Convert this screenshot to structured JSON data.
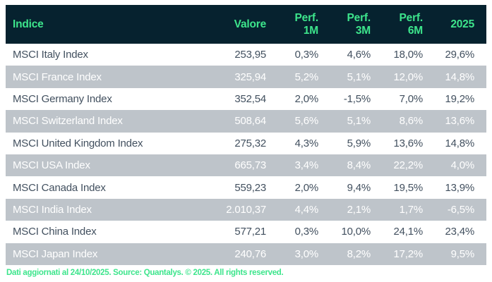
{
  "colors": {
    "header_bg": "#06222f",
    "accent_green": "#3de58c",
    "alt_row_bg": "#bec4ca",
    "row_text": "#42505f"
  },
  "chart_data": {
    "type": "table",
    "columns": [
      "Indice",
      "Valore",
      "Perf. 1M",
      "Perf. 3M",
      "Perf. 6M",
      "2025"
    ],
    "rows": [
      [
        "MSCI Italy Index",
        "253,95",
        "0,3%",
        "4,6%",
        "18,0%",
        "29,6%"
      ],
      [
        "MSCI France Index",
        "325,94",
        "5,2%",
        "5,1%",
        "12,0%",
        "14,8%"
      ],
      [
        "MSCI Germany Index",
        "352,54",
        "2,0%",
        "-1,5%",
        "7,0%",
        "19,2%"
      ],
      [
        "MSCI Switzerland Index",
        "508,64",
        "5,6%",
        "5,1%",
        "8,6%",
        "13,6%"
      ],
      [
        "MSCI United Kingdom Index",
        "275,32",
        "4,3%",
        "5,9%",
        "13,6%",
        "14,8%"
      ],
      [
        "MSCI USA Index",
        "665,73",
        "3,4%",
        "8,4%",
        "22,2%",
        "4,0%"
      ],
      [
        "MSCI Canada Index",
        "559,23",
        "2,0%",
        "9,4%",
        "19,5%",
        "13,9%"
      ],
      [
        "MSCI India Index",
        "2.010,37",
        "4,4%",
        "2,1%",
        "1,7%",
        "-6,5%"
      ],
      [
        "MSCI China Index",
        "577,21",
        "0,3%",
        "10,0%",
        "24,1%",
        "23,4%"
      ],
      [
        "MSCI Japan Index",
        "240,76",
        "3,0%",
        "8,2%",
        "17,2%",
        "9,5%"
      ]
    ],
    "layout": {
      "alternating_rows": true,
      "header_text_color": "#3de58c",
      "header_background": "#06222f"
    }
  },
  "footer": {
    "text": "Dati aggiornati al 24/10/2025. Source: Quantalys. © 2025. All rights reserved."
  }
}
